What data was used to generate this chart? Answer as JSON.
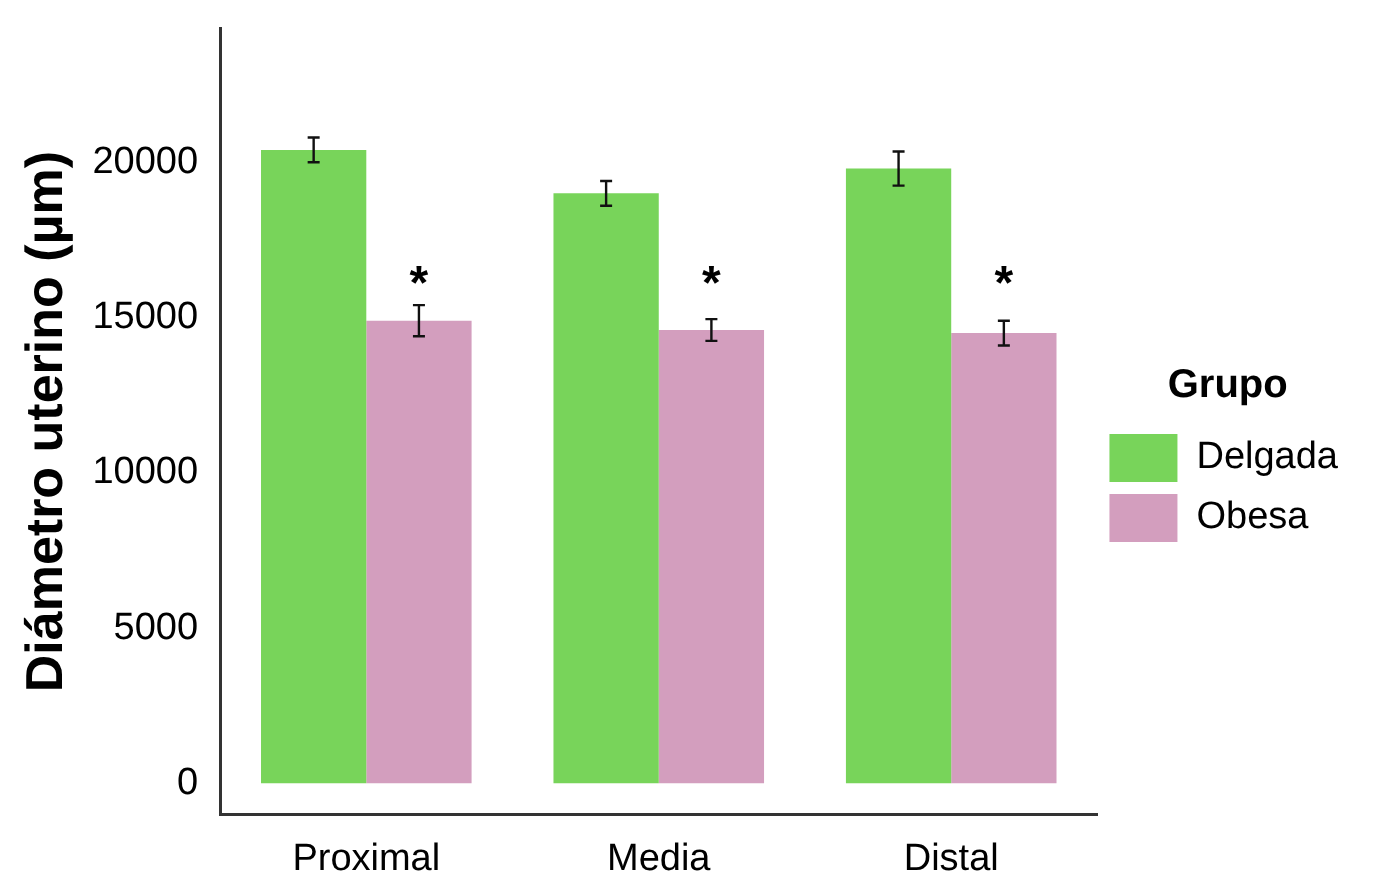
{
  "chart_data": {
    "type": "bar",
    "ylabel": "Diámetro uterino (µm)",
    "legend_title": "Grupo",
    "categories": [
      "Proximal",
      "Media",
      "Distal"
    ],
    "series": [
      {
        "name": "Delgada",
        "color": "#78d45a",
        "values": [
          20400,
          19000,
          19800
        ],
        "errors": [
          400,
          400,
          550
        ]
      },
      {
        "name": "Obesa",
        "color": "#d39ebe",
        "values": [
          14900,
          14600,
          14500
        ],
        "errors": [
          500,
          350,
          400
        ]
      }
    ],
    "annotations": [
      {
        "text": "*",
        "x": "Proximal",
        "y": 16400
      },
      {
        "text": "*",
        "x": "Media",
        "y": 16400
      },
      {
        "text": "*",
        "x": "Distal",
        "y": 16400
      }
    ],
    "ylim": [
      -1000,
      24300
    ],
    "yticks": [
      0,
      5000,
      10000,
      15000,
      20000
    ],
    "grid": false,
    "legend": "right"
  }
}
